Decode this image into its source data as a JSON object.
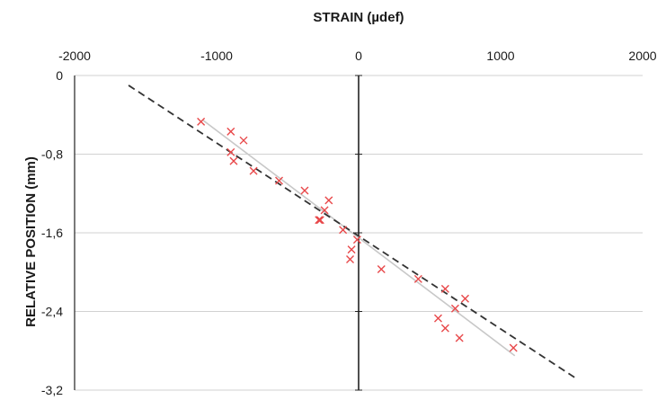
{
  "chart_data": {
    "type": "scatter",
    "title": "STRAIN (µdef)",
    "xlabel": "STRAIN (µdef)",
    "ylabel": "RELATIVE POSITION (mm)",
    "xlim": [
      -2000,
      2000
    ],
    "ylim": [
      -3.2,
      0
    ],
    "x_axis_position": "top",
    "x_ticks": [
      -2000,
      -1000,
      0,
      1000,
      2000
    ],
    "x_tick_labels": [
      "-2000",
      "-1000",
      "0",
      "1000",
      "2000"
    ],
    "y_ticks": [
      0,
      -0.8,
      -1.6,
      -2.4,
      -3.2
    ],
    "y_tick_labels": [
      "0",
      "-0,8",
      "-1,6",
      "-2,4",
      "-3,2"
    ],
    "grid": "horizontal",
    "series": [
      {
        "kind": "scatter",
        "marker": "x",
        "color": "#e8484a",
        "x": [
          -1110,
          -900,
          -810,
          -900,
          -880,
          -740,
          -560,
          -380,
          -210,
          -240,
          -270,
          -280,
          -110,
          -10,
          -50,
          -60,
          160,
          420,
          610,
          680,
          750,
          560,
          610,
          710,
          1090
        ],
        "y": [
          -0.47,
          -0.57,
          -0.66,
          -0.78,
          -0.87,
          -0.97,
          -1.07,
          -1.17,
          -1.27,
          -1.37,
          -1.47,
          -1.47,
          -1.57,
          -1.67,
          -1.77,
          -1.87,
          -1.97,
          -2.07,
          -2.17,
          -2.37,
          -2.27,
          -2.47,
          -2.57,
          -2.67,
          -2.77
        ]
      },
      {
        "kind": "line",
        "style": "solid",
        "color": "#c8c8c8",
        "x": [
          -1100,
          1100
        ],
        "y": [
          -0.45,
          -2.85
        ]
      },
      {
        "kind": "line",
        "style": "dashed",
        "color": "#333333",
        "x": [
          -1620,
          1520
        ],
        "y": [
          -0.1,
          -3.07
        ]
      }
    ]
  }
}
